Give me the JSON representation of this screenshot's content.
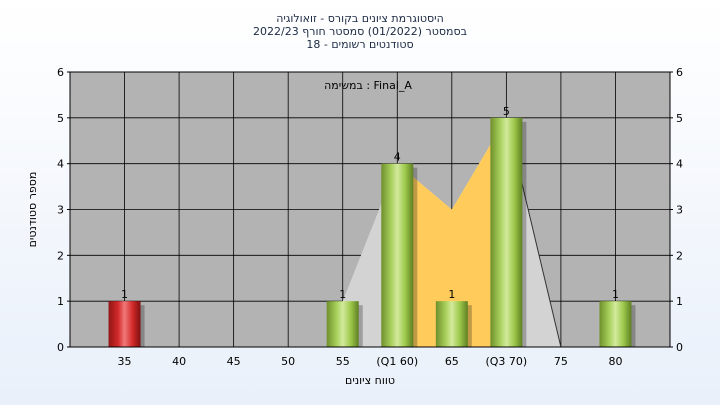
{
  "chart_data": {
    "type": "bar",
    "title_lines": [
      "היסטוגרמת ציונים בקורס - זואולוגיה",
      "בסמסטר  (01/2022)  סמסטר חורף  2022/23",
      "סטודנטים רשומים - 18"
    ],
    "ylabel": "מספר סטודנטים",
    "xlabel": "טווח ציונים",
    "annotation": "במשימה : Final_A",
    "ylim": [
      0,
      6
    ],
    "y_ticks": [
      "0",
      "1",
      "2",
      "3",
      "4",
      "5",
      "6"
    ],
    "x_tick_labels": [
      "35",
      "40",
      "45",
      "50",
      "55",
      "(Q1 60)",
      "65",
      "(Q3 70)",
      "75",
      "80"
    ],
    "x": [
      35,
      40,
      45,
      50,
      55,
      60,
      65,
      70,
      75,
      80
    ],
    "values": [
      1,
      0,
      0,
      0,
      1,
      4,
      1,
      5,
      0,
      1
    ],
    "bar_labels": [
      "1",
      "",
      "",
      "",
      "1",
      "4",
      "1",
      "5",
      "",
      "1"
    ],
    "highlight_bar_color": "#d42a2a",
    "bar_color": "#9cc84a",
    "plot_background": "#b3b3b3",
    "iqr_fill_color": "#ffcc5c",
    "distribution_fill_color": "#d3d3d3",
    "grid": true,
    "legend": "none"
  }
}
